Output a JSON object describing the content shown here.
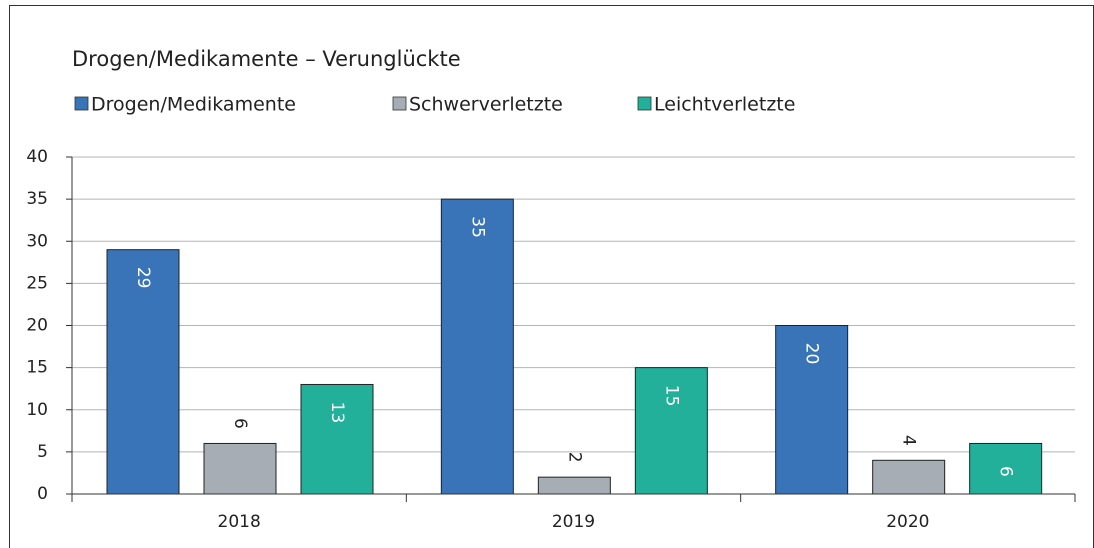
{
  "chart_data": {
    "type": "bar",
    "title": "Drogen/Medikamente – Verunglückte",
    "categories": [
      "2018",
      "2019",
      "2020"
    ],
    "series": [
      {
        "name": "Drogen/Medikamente",
        "color": "#3a74b8",
        "values": [
          29,
          35,
          20
        ]
      },
      {
        "name": "Schwerverletzte",
        "color": "#a7adb4",
        "values": [
          6,
          2,
          4
        ]
      },
      {
        "name": "Leichtverletzte",
        "color": "#22b09b",
        "values": [
          13,
          15,
          6
        ]
      }
    ],
    "ylim": [
      0,
      40
    ],
    "yticks": [
      0,
      5,
      10,
      15,
      20,
      25,
      30,
      35,
      40
    ],
    "grid": true,
    "legend": "top"
  }
}
